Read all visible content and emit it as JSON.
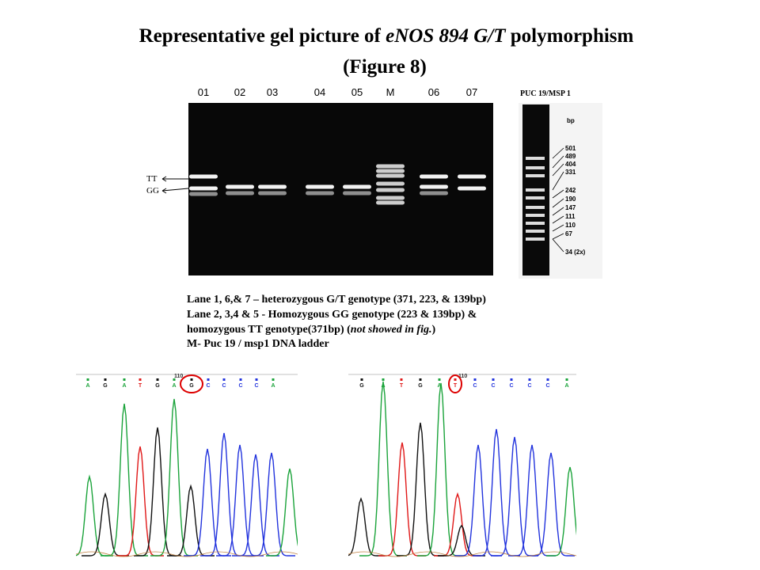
{
  "title": {
    "prefix": "Representative gel picture of ",
    "gene": "eNOS 894 G/T",
    "suffix": " polymorphism",
    "figure": "(Figure 8)"
  },
  "gel": {
    "lanes": [
      "01",
      "02",
      "03",
      "04",
      "05",
      "M",
      "06",
      "07"
    ],
    "band_labels": [
      "TT",
      "GG"
    ]
  },
  "ladder": {
    "name": "PUC 19/MSP 1",
    "unit": "bp",
    "sizes": [
      "501",
      "489",
      "404",
      "331",
      "242",
      "190",
      "147",
      "111",
      "110",
      "67",
      "34 (2x)"
    ]
  },
  "caption": {
    "line1": "Lane 1, 6,& 7 – heterozygous G/T genotype (371, 223, & 139bp)",
    "line2": "Lane 2, 3,4 & 5 -  Homozygous  GG genotype (223 & 139bp) &",
    "line3_prefix": "homozygous  TT genotype(371bp) (",
    "line3_italic": "not showed in fig.",
    "line3_suffix": ")",
    "line4": "M- Puc 19 / msp1 DNA ladder"
  },
  "chromatograms": [
    {
      "position": "110",
      "bases": [
        "A",
        "G",
        "A",
        "T",
        "G",
        "A",
        "G",
        "C",
        "C",
        "C",
        "C",
        "A"
      ]
    },
    {
      "position": "110",
      "bases": [
        "G",
        "A",
        "T",
        "G",
        "A",
        "T",
        "C",
        "C",
        "C",
        "C",
        "C",
        "A"
      ]
    }
  ]
}
